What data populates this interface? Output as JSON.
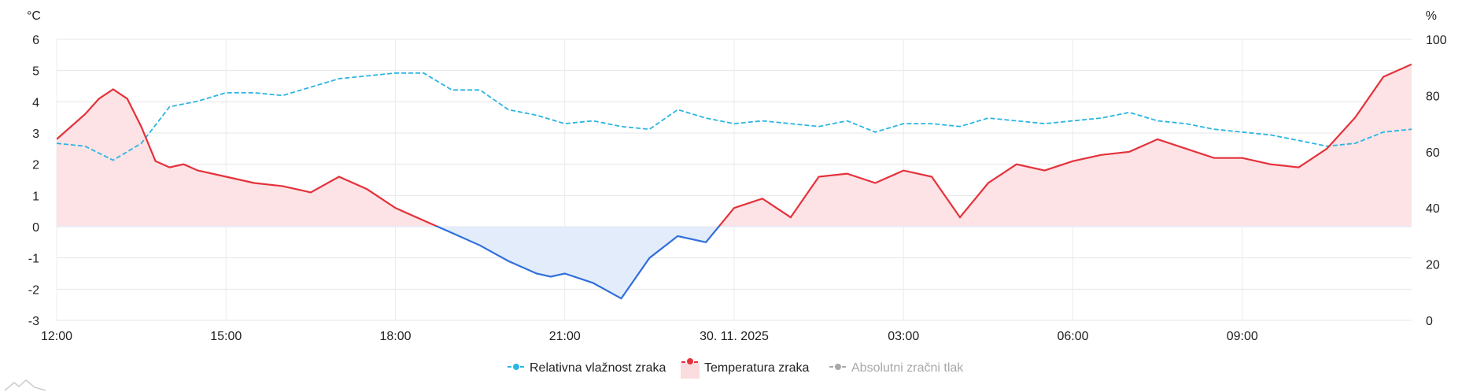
{
  "chart_data": {
    "type": "line",
    "left_axis_unit": "°C",
    "right_axis_unit": "%",
    "left_ylim": [
      -3,
      6
    ],
    "right_ylim": [
      0,
      100
    ],
    "left_ticks": [
      "6",
      "5",
      "4",
      "3",
      "2",
      "1",
      "0",
      "-1",
      "-2",
      "-3"
    ],
    "right_ticks": [
      "100",
      "80",
      "60",
      "40",
      "20",
      "0"
    ],
    "x_tick_labels": [
      "12:00",
      "15:00",
      "18:00",
      "21:00",
      "30. 11. 2025",
      "03:00",
      "06:00",
      "09:00"
    ],
    "grid": true,
    "legend_position": "bottom",
    "series": [
      {
        "name": "Relativna vlažnost zraka",
        "axis": "right",
        "color": "#2bb5e3",
        "style": "dashed",
        "x_hours": [
          0,
          0.5,
          1,
          1.5,
          2,
          2.5,
          3,
          3.5,
          4,
          4.5,
          5,
          5.5,
          6,
          6.5,
          7,
          7.5,
          8,
          8.5,
          9,
          9.5,
          10,
          10.5,
          11,
          11.5,
          12,
          12.5,
          13,
          13.5,
          14,
          14.5,
          15,
          15.5,
          16,
          16.5,
          17,
          17.5,
          18,
          18.5,
          19,
          19.5,
          20,
          20.5,
          21,
          21.5,
          22,
          22.5,
          23,
          23.5,
          24
        ],
        "values": [
          63,
          62,
          57,
          63,
          76,
          78,
          81,
          81,
          80,
          83,
          86,
          87,
          88,
          88,
          82,
          82,
          75,
          73,
          70,
          71,
          69,
          68,
          75,
          72,
          70,
          71,
          70,
          69,
          71,
          67,
          70,
          70,
          69,
          72,
          71,
          70,
          71,
          72,
          74,
          71,
          70,
          68,
          67,
          66,
          64,
          62,
          63,
          67,
          68
        ]
      },
      {
        "name": "Temperatura zraka",
        "axis": "left",
        "color": "#e5313b",
        "negative_color": "#2f6fdb",
        "style": "solid",
        "x_hours": [
          0,
          0.5,
          0.75,
          1,
          1.25,
          1.5,
          1.75,
          2,
          2.25,
          2.5,
          3,
          3.5,
          4,
          4.5,
          5,
          5.5,
          6,
          6.5,
          7,
          7.5,
          8,
          8.5,
          8.75,
          9,
          9.5,
          10,
          10.5,
          11,
          11.5,
          12,
          12.5,
          13,
          13.5,
          14,
          14.5,
          15,
          15.5,
          16,
          16.5,
          17,
          17.5,
          18,
          18.5,
          19,
          19.5,
          20,
          20.5,
          21,
          21.5,
          22,
          22.5,
          23,
          23.5,
          24
        ],
        "values": [
          2.8,
          3.6,
          4.1,
          4.4,
          4.1,
          3.2,
          2.1,
          1.9,
          2.0,
          1.8,
          1.6,
          1.4,
          1.3,
          1.1,
          1.6,
          1.2,
          0.6,
          0.2,
          -0.2,
          -0.6,
          -1.1,
          -1.5,
          -1.6,
          -1.5,
          -1.8,
          -2.3,
          -1.0,
          -0.3,
          -0.5,
          0.6,
          0.9,
          0.3,
          1.6,
          1.7,
          1.4,
          1.8,
          1.6,
          0.3,
          1.4,
          2.0,
          1.8,
          2.1,
          2.3,
          2.4,
          2.8,
          2.5,
          2.2,
          2.2,
          2.0,
          1.9,
          2.5,
          3.5,
          4.8,
          5.2
        ]
      },
      {
        "name": "Absolutni zračni tlak",
        "axis": "right",
        "color": "#a8a8a8",
        "style": "dashed",
        "hidden": true
      }
    ]
  }
}
